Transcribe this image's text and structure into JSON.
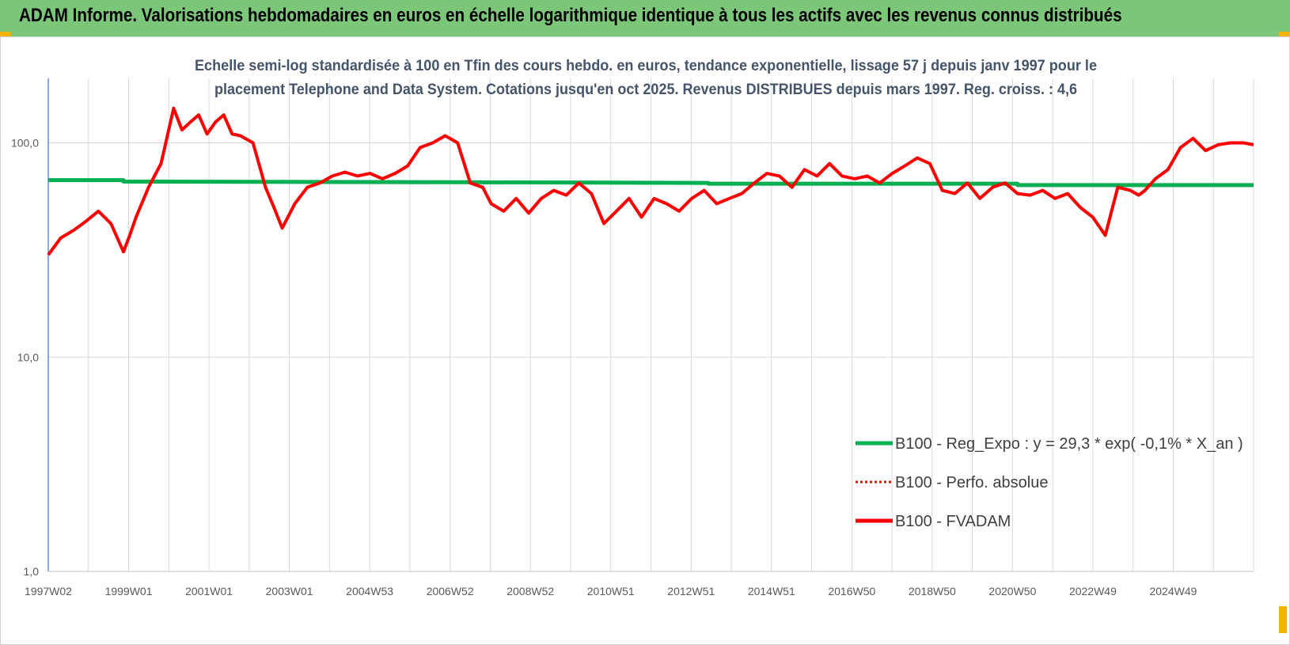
{
  "header": {
    "title": "ADAM Informe. Valorisations hebdomadaires en euros en échelle logarithmique identique à tous les actifs avec les revenus connus distribués"
  },
  "colors": {
    "header_bg": "#7cc67a",
    "regression": "#00b050",
    "series": "#ff0000",
    "accent": "#f2b400"
  },
  "chart_data": {
    "type": "line",
    "title_lines": [
      "Echelle semi-log standardisée à 100 en Tfin des cours hebdo. en euros, tendance exponentielle, lissage 57 j depuis janv 1997 pour le",
      "placement Telephone and Data System.  Cotations jusqu'en oct 2025. Revenus DISTRIBUES depuis mars 1997. Reg. croiss. : 4,6"
    ],
    "y_scale": "log",
    "ylim": [
      1,
      200
    ],
    "y_ticks": [
      "1,0",
      "10,0",
      "100,0"
    ],
    "xlim": [
      1997.0,
      2025.85
    ],
    "x_ticks": [
      "1997W02",
      "1999W01",
      "2001W01",
      "2003W01",
      "2004W53",
      "2006W52",
      "2008W52",
      "2010W51",
      "2012W51",
      "2014W51",
      "2016W50",
      "2018W50",
      "2020W50",
      "2022W49",
      "2024W49"
    ],
    "grid": true,
    "legend_position": "bottom-right",
    "legend": [
      {
        "label": "B100 - Reg_Expo : y = 29,3 * exp( -0,1% *  X_an )",
        "style": "solid",
        "color": "#00b050"
      },
      {
        "label": "B100 - Perfo. absolue",
        "style": "dotted",
        "color": "#ff0000"
      },
      {
        "label": "B100 - FVADAM",
        "style": "solid",
        "color": "#ff0000"
      }
    ],
    "series": [
      {
        "name": "B100 - Reg_Expo : y = 29,3 * exp( -0,1% *  X_an )",
        "x": [
          1997.0,
          1998.8,
          1998.8,
          2007.0,
          2012.8,
          2012.8,
          2020.2,
          2020.2,
          2025.85
        ],
        "y": [
          67,
          67,
          66,
          65.5,
          65,
          64.5,
          64.5,
          63.5,
          63.5
        ]
      },
      {
        "name": "B100 - FVADAM",
        "x": [
          1997.0,
          1997.3,
          1997.6,
          1997.9,
          1998.2,
          1998.5,
          1998.8,
          1998.95,
          1999.1,
          1999.4,
          1999.7,
          2000.0,
          2000.2,
          2000.4,
          2000.6,
          2000.8,
          2001.0,
          2001.2,
          2001.4,
          2001.6,
          2001.9,
          2002.2,
          2002.4,
          2002.6,
          2002.9,
          2003.2,
          2003.5,
          2003.8,
          2004.1,
          2004.4,
          2004.7,
          2005.0,
          2005.3,
          2005.6,
          2005.9,
          2006.2,
          2006.5,
          2006.8,
          2007.1,
          2007.4,
          2007.6,
          2007.9,
          2008.2,
          2008.5,
          2008.8,
          2009.1,
          2009.4,
          2009.7,
          2010.0,
          2010.3,
          2010.6,
          2010.9,
          2011.2,
          2011.5,
          2011.8,
          2012.1,
          2012.4,
          2012.7,
          2013.0,
          2013.3,
          2013.6,
          2013.9,
          2014.2,
          2014.5,
          2014.8,
          2015.1,
          2015.4,
          2015.7,
          2016.0,
          2016.3,
          2016.6,
          2016.9,
          2017.2,
          2017.5,
          2017.8,
          2018.1,
          2018.4,
          2018.7,
          2019.0,
          2019.3,
          2019.6,
          2019.9,
          2020.2,
          2020.5,
          2020.8,
          2021.1,
          2021.4,
          2021.7,
          2022.0,
          2022.3,
          2022.6,
          2022.9,
          2023.1,
          2023.25,
          2023.5,
          2023.8,
          2024.1,
          2024.4,
          2024.7,
          2025.0,
          2025.3,
          2025.6,
          2025.85
        ],
        "y": [
          30,
          36,
          39,
          43,
          48,
          42,
          31,
          37,
          45,
          62,
          80,
          145,
          115,
          125,
          135,
          110,
          125,
          135,
          110,
          108,
          100,
          62,
          50,
          40,
          52,
          62,
          65,
          70,
          73,
          70,
          72,
          68,
          72,
          78,
          95,
          100,
          108,
          100,
          65,
          62,
          52,
          48,
          55,
          47,
          55,
          60,
          57,
          65,
          58,
          42,
          48,
          55,
          45,
          55,
          52,
          48,
          55,
          60,
          52,
          55,
          58,
          65,
          72,
          70,
          62,
          75,
          70,
          80,
          70,
          68,
          70,
          65,
          72,
          78,
          85,
          80,
          60,
          58,
          65,
          55,
          62,
          65,
          58,
          57,
          60,
          55,
          58,
          50,
          45,
          37,
          62,
          60,
          57,
          60,
          68,
          75,
          95,
          105,
          92,
          98,
          100,
          100,
          98
        ]
      }
    ]
  }
}
